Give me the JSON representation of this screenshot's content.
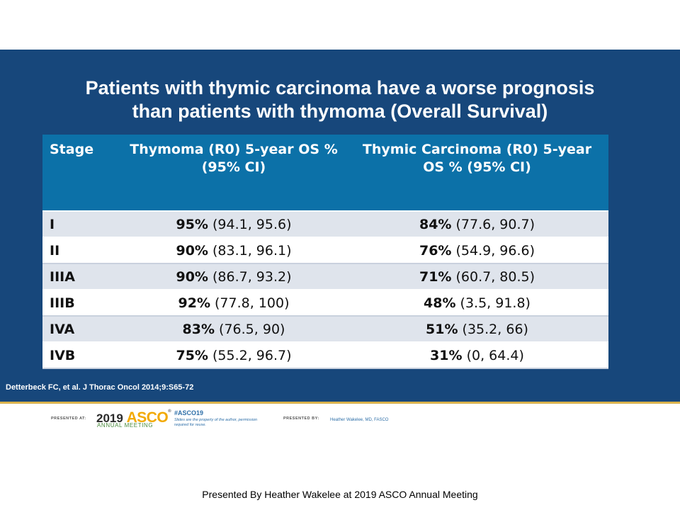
{
  "slide": {
    "title_line1": "Patients with thymic carcinoma have a worse prognosis",
    "title_line2": "than patients with thymoma (Overall Survival)",
    "citation": "Detterbeck FC, et al. J Thorac Oncol 2014;9:S65-72"
  },
  "table": {
    "headers": {
      "stage": "Stage",
      "thymoma": "Thymoma (R0) 5-year OS % (95% CI)",
      "carcinoma": "Thymic Carcinoma (R0) 5-year OS % (95% CI)"
    },
    "rows": [
      {
        "stage": "I",
        "thymoma_pct": "95%",
        "thymoma_ci": " (94.1, 95.6)",
        "carcinoma_pct": "84%",
        "carcinoma_ci": " (77.6, 90.7)"
      },
      {
        "stage": "II",
        "thymoma_pct": "90%",
        "thymoma_ci": " (83.1, 96.1)",
        "carcinoma_pct": "76%",
        "carcinoma_ci": " (54.9, 96.6)"
      },
      {
        "stage": "IIIA",
        "thymoma_pct": "90%",
        "thymoma_ci": " (86.7, 93.2)",
        "carcinoma_pct": "71%",
        "carcinoma_ci": " (60.7, 80.5)"
      },
      {
        "stage": "IIIB",
        "thymoma_pct": "92%",
        "thymoma_ci": " (77.8, 100)",
        "carcinoma_pct": "48%",
        "carcinoma_ci": " (3.5, 91.8)"
      },
      {
        "stage": "IVA",
        "thymoma_pct": "83%",
        "thymoma_ci": " (76.5, 90)",
        "carcinoma_pct": "51%",
        "carcinoma_ci": " (35.2, 66)"
      },
      {
        "stage": "IVB",
        "thymoma_pct": "75%",
        "thymoma_ci": " (55.2, 96.7)",
        "carcinoma_pct": "31%",
        "carcinoma_ci": " (0, 64.4)"
      }
    ]
  },
  "footer": {
    "presented_at_label": "PRESENTED AT:",
    "asco_year": "2019",
    "asco_brand": "ASCO",
    "asco_reg": "®",
    "asco_sub": "ANNUAL MEETING",
    "hashtag": "#ASCO19",
    "note": "Slides are the property of the author, permission required for reuse.",
    "presented_by_label": "PRESENTED BY:",
    "presenter": "Heather Wakelee, MD, FASCO"
  },
  "caption": "Presented By Heather Wakelee at 2019 ASCO Annual Meeting",
  "colors": {
    "slide_background": "#17477b",
    "table_header": "#0c71a8",
    "row_shaded": "#dfe4ec",
    "row_plain": "#ffffff",
    "accent_line": "#d9b24c",
    "asco_brand": "#f2a900"
  }
}
